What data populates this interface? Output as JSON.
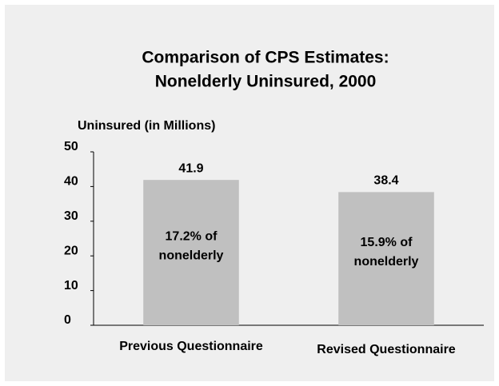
{
  "chart_data": {
    "type": "bar",
    "title": [
      "Comparison of CPS Estimates:",
      "Nonelderly Uninsured, 2000"
    ],
    "y_label": "Uninsured (in Millions)",
    "categories": [
      "Previous Questionnaire",
      "Revised Questionnaire"
    ],
    "values": [
      41.9,
      38.4
    ],
    "bar_labels": [
      [
        "17.2% of",
        "nonelderly"
      ],
      [
        "15.9% of",
        "nonelderly"
      ]
    ],
    "color": "#c0c0c0",
    "ylim": [
      0,
      50
    ],
    "yticks": [
      0,
      10,
      20,
      30,
      40,
      50
    ],
    "grid": false
  }
}
